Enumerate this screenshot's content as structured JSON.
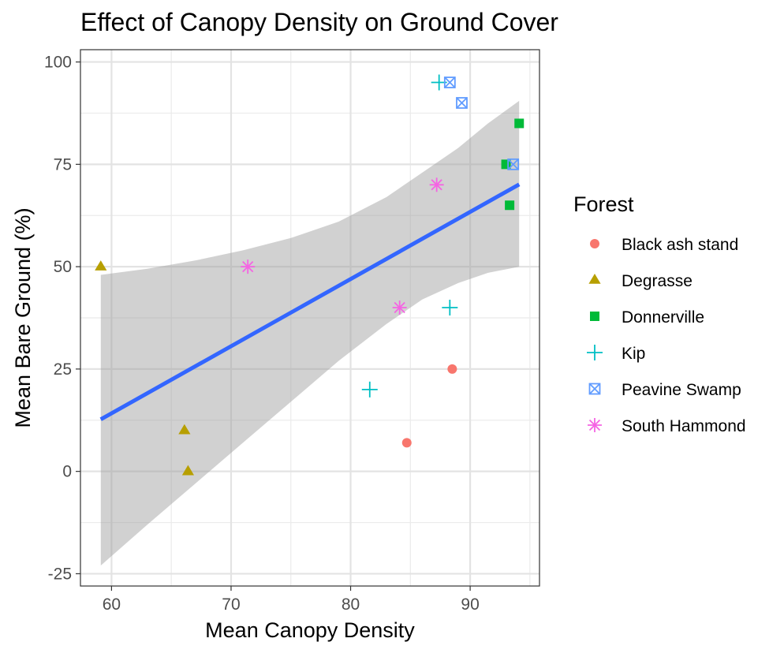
{
  "chart_data": {
    "type": "scatter",
    "title": "Effect of Canopy Density on Ground Cover",
    "xlabel": "Mean Canopy Density",
    "ylabel": "Mean Bare Ground (%)",
    "xlim": [
      57.4,
      95.8
    ],
    "ylim": [
      -28,
      103
    ],
    "x_ticks": [
      60,
      70,
      80,
      90
    ],
    "y_ticks": [
      -25,
      0,
      25,
      50,
      75,
      100
    ],
    "grid": true,
    "legend": {
      "title": "Forest",
      "position": "right"
    },
    "series": [
      {
        "name": "Black ash stand",
        "color": "#F8766D",
        "shape": "circle",
        "points": [
          [
            84.7,
            7
          ],
          [
            88.5,
            25
          ]
        ]
      },
      {
        "name": "Degrasse",
        "color": "#B79F00",
        "shape": "triangle",
        "points": [
          [
            59.1,
            50
          ],
          [
            66.1,
            10
          ],
          [
            66.4,
            0
          ]
        ]
      },
      {
        "name": "Donnerville",
        "color": "#00BA38",
        "shape": "square",
        "points": [
          [
            93.0,
            75
          ],
          [
            93.3,
            65
          ],
          [
            94.1,
            85
          ]
        ]
      },
      {
        "name": "Kip",
        "color": "#00BFC4",
        "shape": "plus",
        "points": [
          [
            81.6,
            20
          ],
          [
            87.4,
            95
          ],
          [
            88.3,
            40
          ]
        ]
      },
      {
        "name": "Peavine Swamp",
        "color": "#619CFF",
        "shape": "boxcross",
        "points": [
          [
            88.3,
            95
          ],
          [
            89.3,
            90
          ],
          [
            93.6,
            75
          ]
        ]
      },
      {
        "name": "South Hammond",
        "color": "#F564E3",
        "shape": "star",
        "points": [
          [
            71.4,
            50
          ],
          [
            84.1,
            40
          ],
          [
            87.2,
            70
          ]
        ]
      }
    ],
    "fit": {
      "method": "linear",
      "color": "#3366FF",
      "x": [
        59.1,
        94.1
      ],
      "y": [
        12.7,
        70.1
      ],
      "band_color": "#999999",
      "band": [
        {
          "x": 59.1,
          "lo": -23,
          "hi": 48
        },
        {
          "x": 63.0,
          "lo": -13,
          "hi": 49.5
        },
        {
          "x": 67.0,
          "lo": -3,
          "hi": 51.5
        },
        {
          "x": 71.0,
          "lo": 7,
          "hi": 54
        },
        {
          "x": 75.0,
          "lo": 17,
          "hi": 57
        },
        {
          "x": 79.0,
          "lo": 27,
          "hi": 61
        },
        {
          "x": 83.0,
          "lo": 36,
          "hi": 67
        },
        {
          "x": 86.0,
          "lo": 42,
          "hi": 73
        },
        {
          "x": 89.0,
          "lo": 46,
          "hi": 79
        },
        {
          "x": 91.5,
          "lo": 48.5,
          "hi": 85
        },
        {
          "x": 94.1,
          "lo": 50,
          "hi": 90.5
        }
      ]
    }
  }
}
